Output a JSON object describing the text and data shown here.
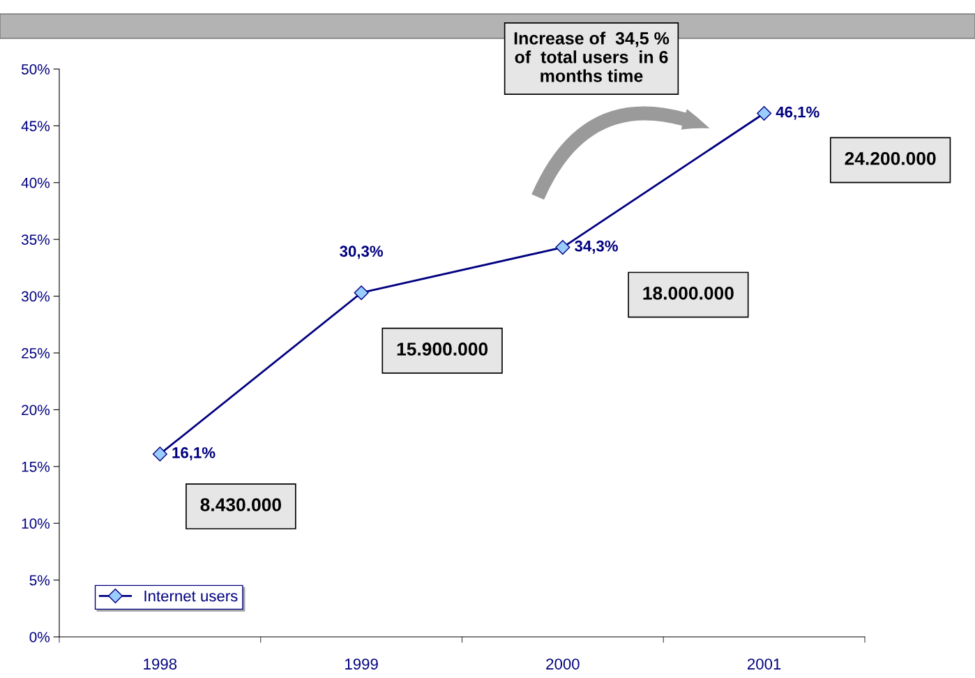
{
  "chart_data": {
    "type": "line",
    "categories": [
      "1998",
      "1999",
      "2000",
      "2001"
    ],
    "series": [
      {
        "name": "Internet users",
        "color": "#000080",
        "values": [
          16.1,
          30.3,
          34.3,
          46.1
        ],
        "value_labels": [
          "16,1%",
          "30,3%",
          "34,3%",
          "46,1%"
        ]
      }
    ],
    "ylim": [
      0,
      50
    ],
    "yticks": [
      {
        "value": 0,
        "label": "0%"
      },
      {
        "value": 5,
        "label": "5%"
      },
      {
        "value": 10,
        "label": "10%"
      },
      {
        "value": 15,
        "label": "15%"
      },
      {
        "value": 20,
        "label": "20%"
      },
      {
        "value": 25,
        "label": "25%"
      },
      {
        "value": 30,
        "label": "30%"
      },
      {
        "value": 35,
        "label": "35%"
      },
      {
        "value": 40,
        "label": "40%"
      },
      {
        "value": 45,
        "label": "45%"
      },
      {
        "value": 50,
        "label": "50%"
      }
    ],
    "marker": "diamond",
    "line_style": "solid",
    "legend": "bottom left",
    "grid": false,
    "annotations": [
      "Increase of  34,5 %\nof  total users  in 6\nmonths time",
      "8.430.000",
      "15.900.000",
      "18.000.000",
      "24.200.000"
    ]
  }
}
